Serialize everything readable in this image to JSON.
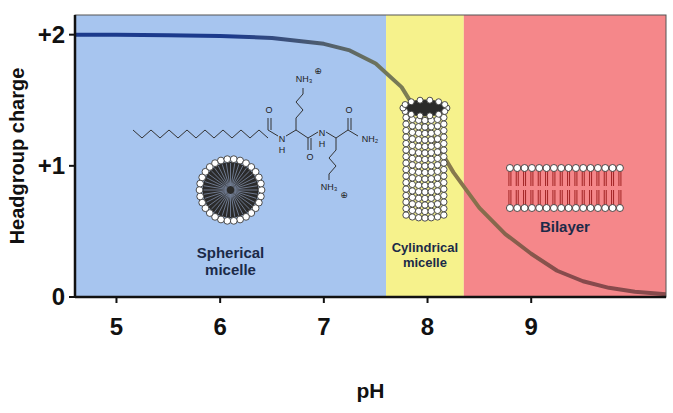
{
  "chart_data": {
    "type": "line",
    "x_label": "pH",
    "y_label": "Headgroup charge",
    "x": [
      4.6,
      5,
      5.5,
      6,
      6.5,
      7,
      7.25,
      7.5,
      7.75,
      8,
      8.25,
      8.5,
      8.75,
      9,
      9.25,
      9.5,
      9.75,
      10,
      10.3
    ],
    "values": [
      2,
      2,
      1.995,
      1.99,
      1.975,
      1.93,
      1.88,
      1.78,
      1.6,
      1.28,
      0.95,
      0.68,
      0.48,
      0.33,
      0.2,
      0.12,
      0.07,
      0.04,
      0.02
    ],
    "color": "#1c3a8c",
    "xlim": [
      4.6,
      10.3
    ],
    "ylim": [
      0,
      2.15
    ],
    "xticks": [
      5,
      6,
      7,
      8,
      9
    ],
    "yticks": [
      0,
      {
        "value": 1,
        "label": "+1"
      },
      {
        "value": 2,
        "label": "+2"
      }
    ],
    "grid": false,
    "regions": [
      {
        "label": "Spherical micelle",
        "start": 4.6,
        "end": 7.6,
        "color": "#a7c5ef"
      },
      {
        "label": "Cylindrical micelle",
        "start": 7.6,
        "end": 8.35,
        "color": "#f6f28c"
      },
      {
        "label": "Bilayer",
        "start": 8.35,
        "end": 10.3,
        "color": "#f5878a"
      }
    ],
    "structure": {
      "labels": [
        "O",
        "N",
        "H",
        "NH₃",
        "⊕",
        "O",
        "N",
        "H",
        "NH₃",
        "⊕",
        "O",
        "NH₂"
      ]
    }
  }
}
